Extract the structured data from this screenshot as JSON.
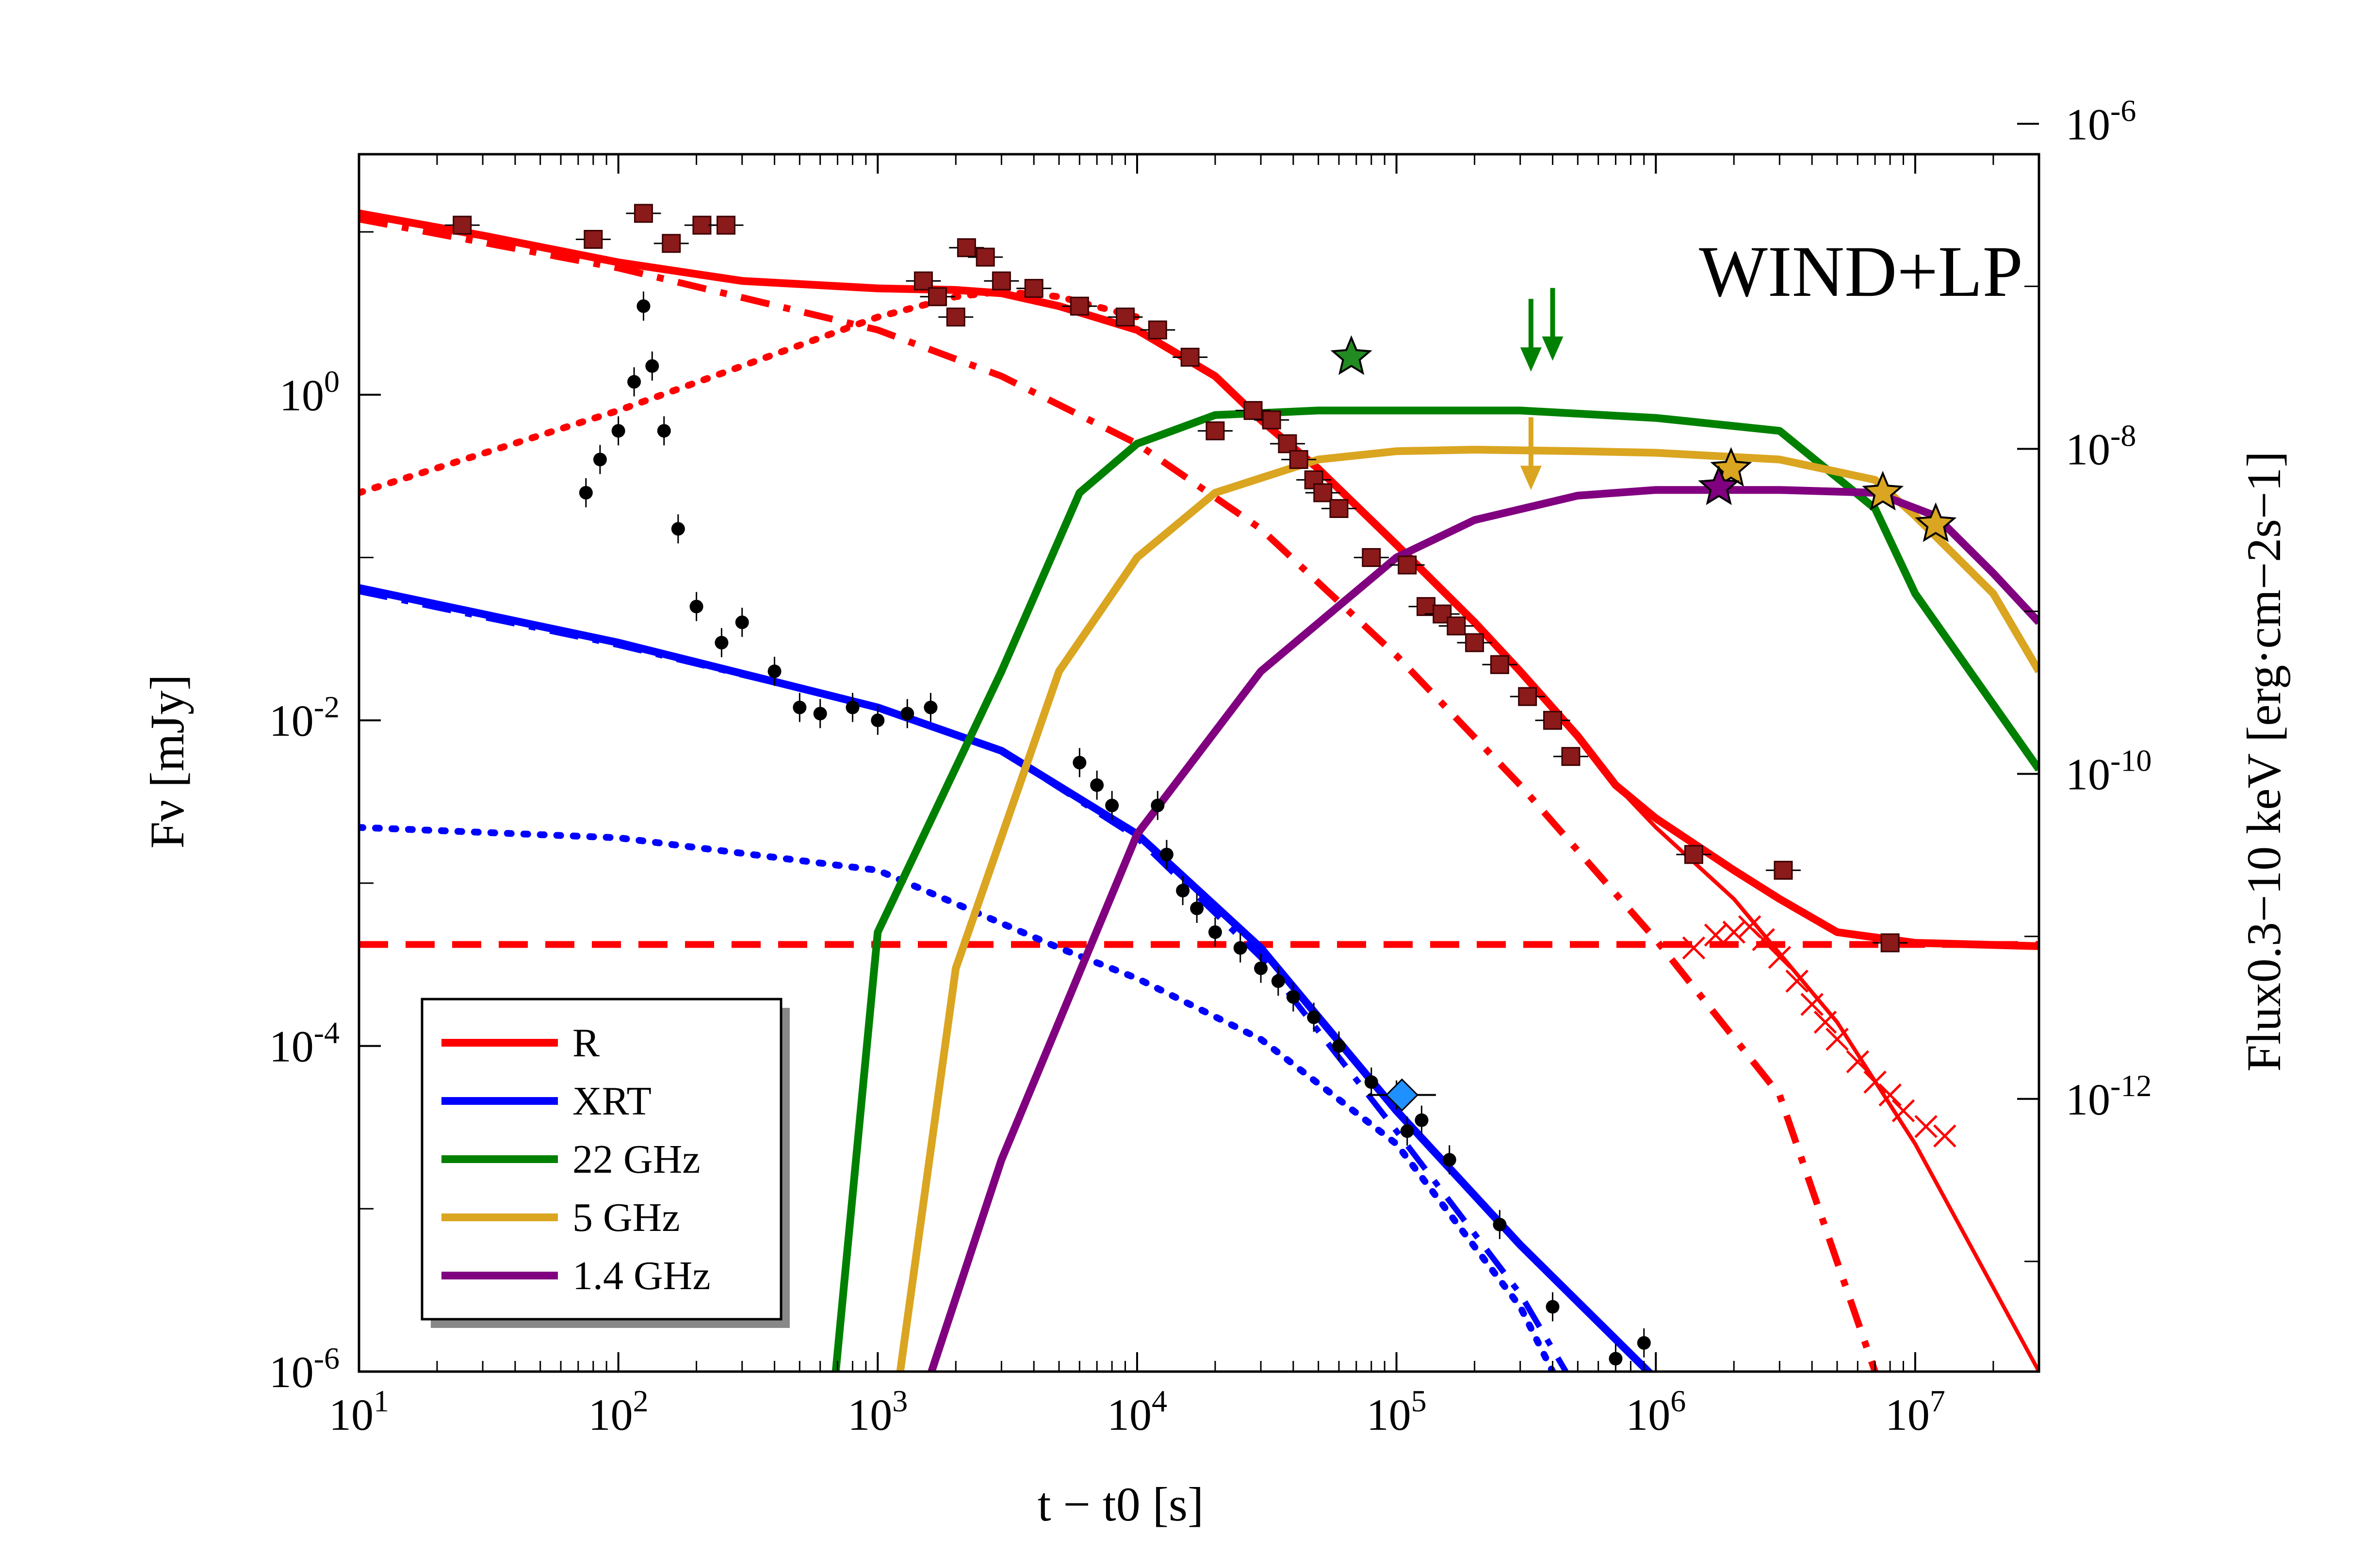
{
  "chart_data": {
    "type": "line",
    "annotation": "WIND+LP",
    "xlabel": "t − t0 [s]",
    "ylabel": "Fν [mJy]",
    "ylabel_right": "Flux0.3−10 keV [erg·cm−2s−1]",
    "x_scale": "log",
    "y_scale": "log",
    "xlim": [
      10,
      30000000
    ],
    "ylim": [
      1e-06,
      30
    ],
    "y2lim": [
      2.1e-14,
      6.5e-07
    ],
    "x_ticks": [
      {
        "value": 10,
        "base": "10",
        "exp": "1"
      },
      {
        "value": 100,
        "base": "10",
        "exp": "2"
      },
      {
        "value": 1000,
        "base": "10",
        "exp": "3"
      },
      {
        "value": 10000,
        "base": "10",
        "exp": "4"
      },
      {
        "value": 100000,
        "base": "10",
        "exp": "5"
      },
      {
        "value": 1000000,
        "base": "10",
        "exp": "6"
      },
      {
        "value": 10000000,
        "base": "10",
        "exp": "7"
      }
    ],
    "y_ticks": [
      {
        "value": 1,
        "base": "10",
        "exp": "0"
      },
      {
        "value": 0.01,
        "base": "10",
        "exp": "-2"
      },
      {
        "value": 0.0001,
        "base": "10",
        "exp": "-4"
      },
      {
        "value": 1e-06,
        "base": "10",
        "exp": "-6"
      }
    ],
    "y2_ticks": [
      {
        "value": 1e-06,
        "base": "10",
        "exp": "-6"
      },
      {
        "value": 1e-08,
        "base": "10",
        "exp": "-8"
      },
      {
        "value": 1e-10,
        "base": "10",
        "exp": "-10"
      },
      {
        "value": 1e-12,
        "base": "10",
        "exp": "-12"
      }
    ],
    "legend": {
      "position": "bottom-left",
      "entries": [
        {
          "label": "R",
          "color": "#ff0000"
        },
        {
          "label": "XRT",
          "color": "#0000ff"
        },
        {
          "label": "22 GHz",
          "color": "#008000"
        },
        {
          "label": "5 GHz",
          "color": "#daa520"
        },
        {
          "label": "1.4 GHz",
          "color": "#800080"
        }
      ]
    },
    "series": [
      {
        "name": "R",
        "style": "solid",
        "color": "#ff0000",
        "width": 16,
        "x": [
          10,
          30,
          100,
          300,
          1000,
          2000,
          3000,
          5000,
          10000,
          20000,
          30000,
          50000,
          100000,
          200000,
          300000,
          500000,
          700000,
          1000000,
          2000000,
          3000000,
          5000000,
          10000000,
          30000000
        ],
        "y": [
          13,
          9.5,
          6.5,
          5,
          4.5,
          4.4,
          4.2,
          3.5,
          2.5,
          1.3,
          0.7,
          0.35,
          0.12,
          0.04,
          0.02,
          0.008,
          0.004,
          0.0025,
          0.0012,
          0.0008,
          0.0005,
          0.00043,
          0.00041
        ]
      },
      {
        "name": "R",
        "style": "dashdot",
        "color": "#ff0000",
        "width": 14,
        "x": [
          10,
          100,
          1000,
          3000,
          10000,
          30000,
          100000,
          300000,
          1000000,
          3000000,
          7000000
        ],
        "y": [
          12,
          6,
          2.5,
          1.3,
          0.5,
          0.15,
          0.025,
          0.004,
          0.00045,
          5e-05,
          1e-06
        ]
      },
      {
        "name": "R",
        "style": "dotted",
        "color": "#ff0000",
        "width": 14,
        "x": [
          10,
          100,
          300,
          1000,
          2000,
          3000,
          5000,
          10000
        ],
        "y": [
          0.25,
          0.8,
          1.5,
          3,
          4,
          4.3,
          4,
          3
        ]
      },
      {
        "name": "R",
        "style": "dashed",
        "color": "#ff0000",
        "width": 14,
        "x": [
          10,
          30000000
        ],
        "y": [
          0.00042,
          0.00042
        ]
      },
      {
        "name": "R",
        "style": "solid-thin",
        "color": "#ff0000",
        "width": 8,
        "x": [
          700000,
          1000000,
          2000000,
          5000000,
          10000000,
          30000000
        ],
        "y": [
          0.004,
          0.0022,
          0.0008,
          0.00014,
          2.5e-05,
          1e-06
        ]
      },
      {
        "name": "XRT",
        "style": "solid",
        "color": "#0000ff",
        "width": 16,
        "x": [
          10,
          100,
          1000,
          3000,
          10000,
          30000,
          100000,
          300000,
          1000000
        ],
        "y": [
          0.065,
          0.03,
          0.012,
          0.0065,
          0.002,
          0.0004,
          4e-05,
          6e-06,
          9e-07
        ]
      },
      {
        "name": "XRT",
        "style": "dashdot",
        "color": "#0000ff",
        "width": 12,
        "x": [
          10,
          100,
          1000,
          3000,
          10000,
          30000,
          100000,
          300000,
          450000
        ],
        "y": [
          0.062,
          0.029,
          0.012,
          0.0065,
          0.0019,
          0.00035,
          3e-05,
          3e-06,
          1e-06
        ]
      },
      {
        "name": "XRT",
        "style": "dotted",
        "color": "#0000ff",
        "width": 14,
        "x": [
          10,
          100,
          1000,
          5000,
          10000,
          30000,
          100000,
          300000,
          400000
        ],
        "y": [
          0.0022,
          0.0019,
          0.0012,
          0.0004,
          0.00026,
          0.00011,
          2.5e-05,
          2.5e-06,
          1e-06
        ]
      },
      {
        "name": "22 GHz",
        "style": "solid",
        "color": "#008000",
        "width": 16,
        "x": [
          600,
          1000,
          3000,
          6000,
          10000,
          20000,
          50000,
          100000,
          300000,
          1000000,
          3000000,
          7000000,
          10000000,
          30000000
        ],
        "y": [
          1e-07,
          0.0005,
          0.02,
          0.25,
          0.5,
          0.75,
          0.8,
          0.8,
          0.8,
          0.72,
          0.6,
          0.2,
          0.06,
          0.005
        ]
      },
      {
        "name": "5 GHz",
        "style": "solid",
        "color": "#daa520",
        "width": 16,
        "x": [
          1000,
          2000,
          5000,
          10000,
          20000,
          50000,
          100000,
          200000,
          500000,
          1000000,
          3000000,
          7000000,
          10000000,
          20000000,
          30000000
        ],
        "y": [
          1e-07,
          0.0003,
          0.02,
          0.1,
          0.25,
          0.4,
          0.45,
          0.46,
          0.45,
          0.44,
          0.4,
          0.3,
          0.18,
          0.06,
          0.02
        ]
      },
      {
        "name": "1.4 GHz",
        "style": "solid",
        "color": "#800080",
        "width": 16,
        "x": [
          1000,
          3000,
          10000,
          30000,
          100000,
          200000,
          500000,
          1000000,
          3000000,
          7000000,
          12000000,
          20000000,
          30000000
        ],
        "y": [
          1e-07,
          2e-05,
          0.002,
          0.02,
          0.1,
          0.17,
          0.24,
          0.26,
          0.26,
          0.25,
          0.18,
          0.08,
          0.04
        ]
      }
    ],
    "observations": [
      {
        "name": "R",
        "marker": "square",
        "color": "#8b1a1a",
        "x": [
          25,
          80,
          125,
          160,
          210,
          260,
          1500,
          1700,
          2000,
          2200,
          2600,
          3000,
          4000,
          6000,
          9000,
          12000,
          16000,
          20000,
          28000,
          33000,
          38000,
          42000,
          48000,
          52000,
          60000,
          80000,
          110000,
          130000,
          150000,
          170000,
          200000,
          250000,
          320000,
          400000,
          470000,
          1400000,
          3100000,
          8000000
        ],
        "y": [
          11,
          9,
          13,
          8.5,
          11,
          11,
          5,
          4,
          3,
          8,
          7,
          5,
          4.5,
          3.5,
          3,
          2.5,
          1.7,
          0.6,
          0.8,
          0.7,
          0.5,
          0.4,
          0.3,
          0.25,
          0.2,
          0.1,
          0.09,
          0.05,
          0.045,
          0.038,
          0.03,
          0.022,
          0.014,
          0.01,
          0.006,
          0.0015,
          0.0012,
          0.00043
        ]
      },
      {
        "name": "R",
        "marker": "cross",
        "color": "#ff0000",
        "x": [
          1400000,
          1700000,
          2000000,
          2300000,
          2600000,
          3000000,
          3500000,
          4000000,
          4500000,
          5000000,
          6000000,
          7000000,
          8000000,
          9000000,
          11000000,
          13000000
        ],
        "y": [
          0.0004,
          0.00048,
          0.0005,
          0.00054,
          0.00045,
          0.00035,
          0.00025,
          0.00018,
          0.00014,
          0.00011,
          8e-05,
          6e-05,
          5e-05,
          4e-05,
          3.2e-05,
          2.8e-05
        ]
      },
      {
        "name": "XRT",
        "marker": "dot",
        "color": "#000000",
        "x": [
          75,
          85,
          100,
          115,
          125,
          135,
          150,
          170,
          200,
          250,
          300,
          400,
          500,
          600,
          800,
          1000,
          1300,
          1600,
          6000,
          7000,
          8000,
          12000,
          13000,
          15000,
          17000,
          20000,
          25000,
          30000,
          35000,
          40000,
          48000,
          60000,
          80000,
          100000,
          110000,
          125000,
          160000,
          250000,
          400000,
          700000,
          900000
        ],
        "y": [
          0.25,
          0.4,
          0.6,
          1.2,
          3.5,
          1.5,
          0.6,
          0.15,
          0.05,
          0.03,
          0.04,
          0.02,
          0.012,
          0.011,
          0.012,
          0.01,
          0.011,
          0.012,
          0.0055,
          0.004,
          0.003,
          0.003,
          0.0015,
          0.0009,
          0.0007,
          0.0005,
          0.0004,
          0.0003,
          0.00025,
          0.0002,
          0.00015,
          0.0001,
          6e-05,
          5e-05,
          3e-05,
          3.5e-05,
          2e-05,
          8e-06,
          2.5e-06,
          1.2e-06,
          1.5e-06
        ]
      },
      {
        "name": "XRT",
        "marker": "diamond",
        "color": "#1e90ff",
        "x": [
          105000
        ],
        "y": [
          5e-05
        ]
      },
      {
        "name": "22 GHz",
        "marker": "star",
        "color": "#228b22",
        "x": [
          67000
        ],
        "y": [
          1.7
        ]
      },
      {
        "name": "5 GHz",
        "marker": "star",
        "color": "#daa520",
        "x": [
          1950000,
          7500000
        ],
        "y": [
          0.35,
          0.25
        ]
      },
      {
        "name": "1.4 GHz",
        "marker": "star",
        "color": "#800080",
        "x": [
          1750000
        ],
        "y": [
          0.27
        ]
      },
      {
        "name": "1.4 GHz",
        "marker": "star",
        "color": "#daa520",
        "x": [
          12000000
        ],
        "y": [
          0.16
        ]
      }
    ],
    "upper_limits": [
      {
        "color": "#008000",
        "x": 330000,
        "y": 2.4
      },
      {
        "color": "#008000",
        "x": 400000,
        "y": 2.8
      },
      {
        "color": "#daa520",
        "x": 330000,
        "y": 0.45
      }
    ]
  }
}
